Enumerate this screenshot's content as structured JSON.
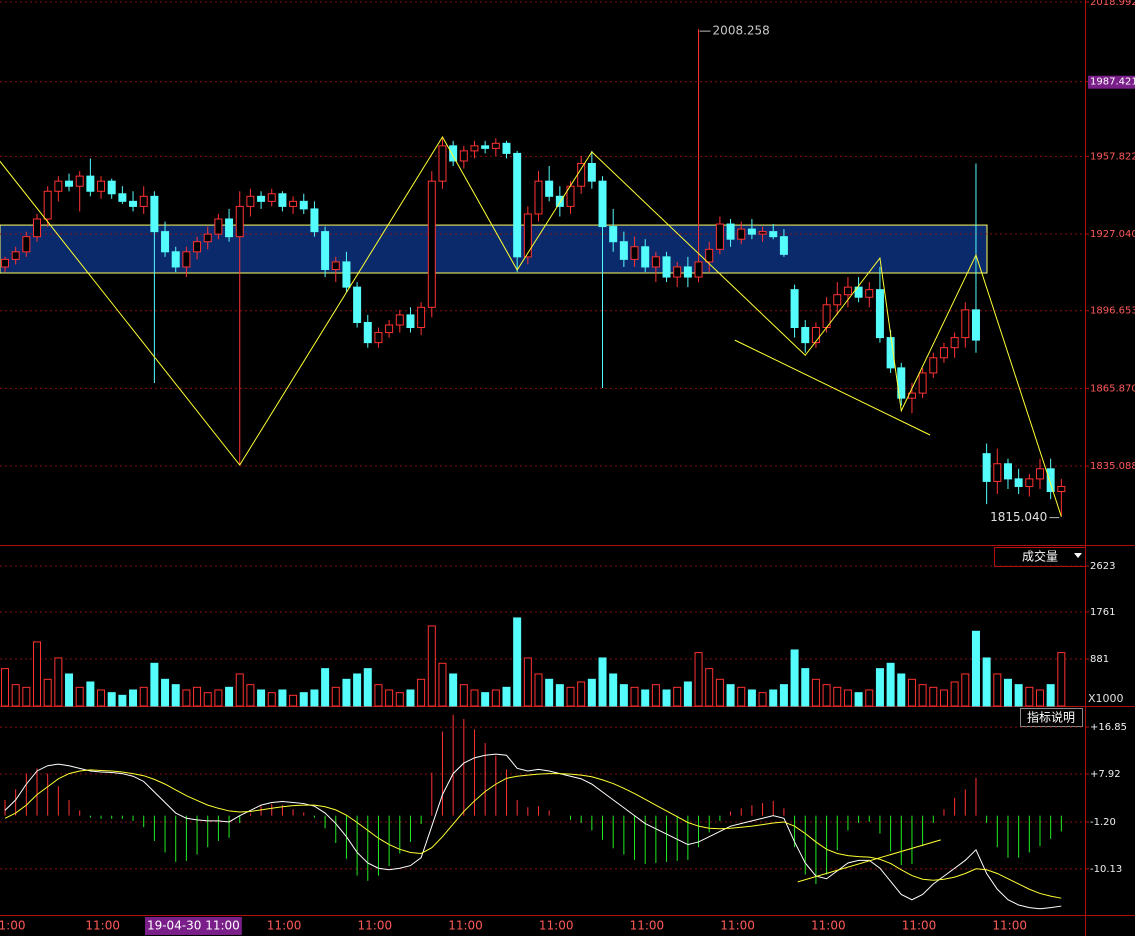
{
  "chart_data": {
    "type": "candlestick",
    "up_color": "#ff3232",
    "down_color": "#54fcfc",
    "grid": true,
    "open": [
      1914,
      1917,
      1920,
      1926,
      1933,
      1944,
      1948,
      1946,
      1950,
      1944,
      1948,
      1943,
      1940,
      1938,
      1942,
      1928,
      1920,
      1914,
      1920,
      1924,
      1927,
      1933,
      1926,
      1938,
      1942,
      1940,
      1943,
      1938,
      1940,
      1937,
      1928,
      1913,
      1916,
      1906,
      1892,
      1884,
      1888,
      1891,
      1895,
      1890,
      1898,
      1948,
      1962,
      1956,
      1960,
      1962,
      1961,
      1963,
      1959,
      1918,
      1935,
      1948,
      1942,
      1938,
      1946,
      1955,
      1948,
      1930,
      1924,
      1917,
      1922,
      1914,
      1918,
      1910,
      1914,
      1910,
      1916,
      1921,
      1931,
      1925,
      1929,
      1927,
      1928,
      1926,
      1905,
      1890,
      1884,
      1890,
      1899,
      1903,
      1906,
      1902,
      1905,
      1886,
      1874,
      1862,
      1864,
      1872,
      1878,
      1882,
      1886,
      1897,
      1840,
      1829,
      1836,
      1830,
      1827,
      1830,
      1834,
      1825
    ],
    "high": [
      1918,
      1922,
      1928,
      1935,
      1946,
      1950,
      1951,
      1952,
      1957,
      1950,
      1949,
      1946,
      1944,
      1946,
      1944,
      1932,
      1922,
      1922,
      1926,
      1930,
      1935,
      1937,
      1944,
      1945,
      1944,
      1945,
      1944,
      1942,
      1943,
      1940,
      1930,
      1918,
      1920,
      1908,
      1895,
      1890,
      1893,
      1897,
      1898,
      1900,
      1952,
      1965,
      1964,
      1962,
      1964,
      1964,
      1965,
      1964,
      1960,
      1938,
      1952,
      1954,
      1946,
      1948,
      1958,
      1960,
      1950,
      1937,
      1928,
      1926,
      1925,
      1920,
      1920,
      1916,
      1918,
      2008.258,
      1924,
      1934,
      1933,
      1932,
      1933,
      1930,
      1931,
      1929,
      1907,
      1893,
      1892,
      1902,
      1908,
      1910,
      1910,
      1908,
      1914,
      1889,
      1876,
      1868,
      1874,
      1880,
      1884,
      1888,
      1900,
      1955,
      1844,
      1842,
      1838,
      1834,
      1832,
      1838,
      1838,
      1830
    ],
    "low": [
      1912,
      1915,
      1918,
      1924,
      1930,
      1940,
      1944,
      1936,
      1942,
      1941,
      1941,
      1939,
      1936,
      1935,
      1868,
      1918,
      1912,
      1910,
      1917,
      1921,
      1925,
      1924,
      1835.5,
      1934,
      1937,
      1938,
      1936,
      1935,
      1935,
      1926,
      1910,
      1908,
      1904,
      1890,
      1882,
      1882,
      1886,
      1888,
      1888,
      1887,
      1894,
      1945,
      1954,
      1953,
      1957,
      1959,
      1958,
      1957,
      1912,
      1915,
      1932,
      1940,
      1934,
      1935,
      1943,
      1945,
      1866,
      1920,
      1914,
      1914,
      1912,
      1908,
      1908,
      1906,
      1906,
      1908,
      1912,
      1919,
      1922,
      1923,
      1925,
      1924,
      1925,
      1918,
      1886,
      1880,
      1882,
      1888,
      1895,
      1898,
      1900,
      1898,
      1884,
      1872,
      1859,
      1856,
      1862,
      1870,
      1876,
      1878,
      1882,
      1880,
      1820,
      1824,
      1826,
      1824,
      1823,
      1826,
      1822,
      1815.04
    ],
    "close": [
      1917,
      1920,
      1926,
      1933,
      1944,
      1948,
      1946,
      1950,
      1944,
      1948,
      1943,
      1940,
      1938,
      1942,
      1928,
      1920,
      1914,
      1920,
      1924,
      1927,
      1933,
      1926,
      1938,
      1942,
      1940,
      1943,
      1938,
      1940,
      1937,
      1928,
      1913,
      1916,
      1906,
      1892,
      1884,
      1888,
      1891,
      1895,
      1890,
      1898,
      1948,
      1962,
      1956,
      1960,
      1962,
      1961,
      1963,
      1959,
      1918,
      1935,
      1948,
      1942,
      1938,
      1946,
      1955,
      1948,
      1930,
      1924,
      1917,
      1922,
      1914,
      1918,
      1910,
      1914,
      1910,
      1916,
      1921,
      1931,
      1925,
      1929,
      1927,
      1928,
      1926,
      1919,
      1890,
      1884,
      1890,
      1899,
      1903,
      1906,
      1902,
      1905,
      1886,
      1874,
      1862,
      1864,
      1872,
      1878,
      1882,
      1886,
      1897,
      1885,
      1829,
      1836,
      1830,
      1827,
      1830,
      1834,
      1825,
      1827
    ],
    "ylim": [
      1803.8,
      2019.8
    ],
    "yticks": [
      2018.992,
      1987.421,
      1957.822,
      {
        "value": 1927.04,
        "label": "1927.040"
      },
      1896.653,
      {
        "value": 1865.87,
        "label": "1865.870"
      },
      1835.088
    ],
    "max_label": "2008.258",
    "min_label": "1815.040",
    "zone": {
      "range": [
        1911.6,
        1930.6
      ],
      "color": "#0b2a6b"
    },
    "zigzag": {
      "color": "#ffff33",
      "x": [
        -0.5,
        22,
        41,
        48,
        55,
        75,
        82,
        84,
        91,
        99
      ],
      "values": [
        1956,
        1835.5,
        1965.5,
        1912.8,
        1959.6,
        1879,
        1917.5,
        1857,
        1918.7,
        1815.04
      ]
    },
    "trendline": {
      "x": [
        68.4,
        86.7
      ],
      "values": [
        1885,
        1847.4
      ]
    },
    "volume": {
      "title": "成交量",
      "unit": "X1000",
      "ylim": [
        0,
        2623
      ],
      "yticks": [
        2623,
        1761,
        881
      ],
      "values": [
        700,
        400,
        350,
        1200,
        500,
        900,
        600,
        350,
        450,
        300,
        250,
        200,
        300,
        350,
        800,
        500,
        400,
        300,
        350,
        250,
        300,
        350,
        600,
        400,
        300,
        250,
        300,
        200,
        250,
        300,
        700,
        350,
        500,
        600,
        700,
        400,
        300,
        250,
        300,
        500,
        1500,
        800,
        600,
        400,
        300,
        250,
        300,
        350,
        1650,
        900,
        600,
        500,
        400,
        350,
        450,
        500,
        900,
        600,
        400,
        350,
        300,
        400,
        300,
        350,
        450,
        1000,
        700,
        500,
        400,
        350,
        300,
        250,
        300,
        400,
        1050,
        700,
        500,
        400,
        350,
        300,
        250,
        300,
        700,
        800,
        600,
        500,
        400,
        350,
        300,
        450,
        600,
        1400,
        900,
        600,
        500,
        400,
        350,
        300,
        400,
        1000
      ]
    },
    "macd": {
      "button": "指标说明",
      "ylim": [
        -18.9,
        20.1
      ],
      "yticks": [
        {
          "value": 16.85,
          "label": "+16.85"
        },
        {
          "value": 7.92,
          "label": "+7.92"
        },
        {
          "value": -1.2,
          "label": "-1.20"
        },
        -10.13
      ],
      "up_color": "#ff3232",
      "down_color": "#22ee22",
      "hist": [
        3,
        5,
        8,
        9,
        8,
        5.6,
        3,
        1,
        -0.4,
        -0.6,
        -0.6,
        -0.6,
        -1,
        -2.2,
        -4.8,
        -7,
        -8.8,
        -8.6,
        -7.4,
        -6,
        -4.8,
        -4.2,
        -1.4,
        0.4,
        1.8,
        2.2,
        2,
        1.2,
        0.6,
        -0.4,
        -2.4,
        -5.2,
        -8.2,
        -11.4,
        -12.4,
        -11.4,
        -9.6,
        -7.2,
        -5,
        -1.6,
        8.2,
        16,
        19.2,
        18.4,
        16.4,
        13.8,
        11.4,
        8.8,
        3,
        1.6,
        1.8,
        1,
        0,
        -0.8,
        -1.4,
        -2.8,
        -4.6,
        -6.2,
        -7.4,
        -8.4,
        -9.2,
        -9,
        -8.8,
        -8.6,
        -8.4,
        -6,
        -3.2,
        -1,
        0.8,
        1.4,
        2,
        2.4,
        2.8,
        1.4,
        -6,
        -11.2,
        -13,
        -11.2,
        -6.6,
        -2.8,
        -1.4,
        -1.2,
        -3.4,
        -6.8,
        -9.4,
        -9.2,
        -5.8,
        -1.4,
        1.2,
        3.4,
        5,
        7.2,
        -1.4,
        -6,
        -8,
        -8,
        -7,
        -5.8,
        -4.4,
        -3
      ],
      "series": [
        {
          "color": "#ffffff",
          "values": [
            1,
            3,
            6,
            8.5,
            9.5,
            9.8,
            9.5,
            9,
            8.5,
            8.3,
            8.2,
            8,
            7.5,
            6.5,
            4.5,
            2.5,
            0.5,
            -0.5,
            -0.8,
            -1,
            -1,
            -1.2,
            0,
            1,
            2,
            2.5,
            2.7,
            2.5,
            2.3,
            1.8,
            0.5,
            -1.5,
            -4,
            -7,
            -9,
            -10,
            -10.3,
            -10,
            -9.5,
            -8,
            -2,
            4,
            8,
            10,
            11,
            11.5,
            11.7,
            11.5,
            9,
            8.5,
            8.8,
            8.5,
            8,
            7.5,
            7,
            6,
            4.5,
            3,
            1.5,
            0,
            -1.5,
            -2.5,
            -3.5,
            -4.5,
            -5.5,
            -5,
            -4,
            -3,
            -2,
            -1.5,
            -1,
            -0.5,
            0,
            -0.5,
            -5,
            -9,
            -11.5,
            -12,
            -10.5,
            -9,
            -8.5,
            -8.5,
            -10,
            -12.5,
            -15,
            -16,
            -15,
            -13,
            -11.5,
            -10,
            -8.5,
            -6.5,
            -11,
            -14,
            -16,
            -17,
            -17.5,
            -17.7,
            -17.5,
            -17.2
          ]
        },
        {
          "color": "#ffff33",
          "values": [
            -0.5,
            0.5,
            2,
            4,
            5.5,
            7,
            8,
            8.5,
            8.7,
            8.6,
            8.5,
            8.3,
            8,
            7.6,
            6.9,
            6,
            4.9,
            3.8,
            2.9,
            2,
            1.4,
            0.9,
            0.7,
            0.8,
            1.1,
            1.4,
            1.7,
            1.9,
            2,
            2,
            1.7,
            1.1,
            0.1,
            -1.3,
            -2.8,
            -4.3,
            -5.5,
            -6.4,
            -7,
            -7.2,
            -6.1,
            -4,
            -1.6,
            0.8,
            2.8,
            4.6,
            6,
            7.1,
            7.5,
            7.7,
            7.9,
            8,
            8,
            7.9,
            7.7,
            7.4,
            6.8,
            6.1,
            5.2,
            4.2,
            3.1,
            2,
            0.9,
            -0.2,
            -1.3,
            -2,
            -2.4,
            -2.5,
            -2.4,
            -2.2,
            -2,
            -1.7,
            -1.4,
            -1.2,
            -2,
            -3.4,
            -5,
            -6.4,
            -7.2,
            -7.6,
            -7.8,
            -7.9,
            -8.3,
            -9.1,
            -10.3,
            -11.4,
            -12.1,
            -12.3,
            -12.1,
            -11.7,
            -11,
            -10.1,
            -10.3,
            -11,
            -12,
            -13,
            -14,
            -14.8,
            -15.3,
            -15.7
          ]
        }
      ],
      "trendline": {
        "x": [
          74.3,
          87.7
        ],
        "values": [
          -12.6,
          -4.6
        ]
      }
    },
    "xlabels": [
      "1:00",
      "11:00",
      "19-04-30 11:00",
      "11:00",
      "11:00",
      "11:00",
      "11:00",
      "11:00",
      "11:00",
      "11:00",
      "11:00",
      "11:00"
    ]
  }
}
